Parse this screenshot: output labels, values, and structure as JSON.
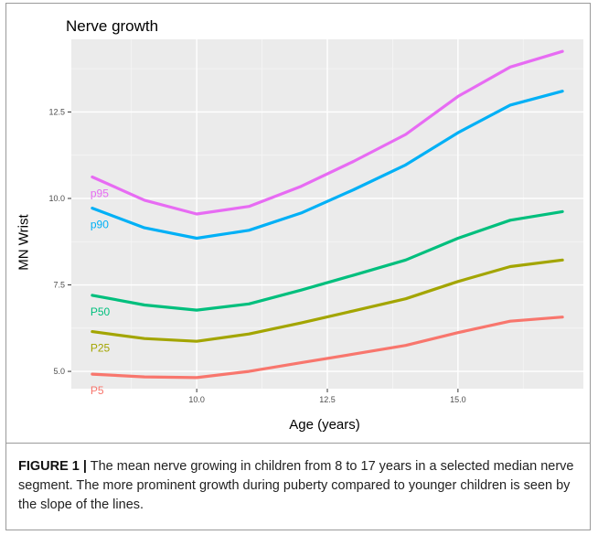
{
  "chart_title": "Nerve growth",
  "caption": {
    "label": "FIGURE 1 |",
    "text": " The mean nerve growing in children from 8 to 17 years in a selected median nerve segment. The more prominent growth during puberty compared to younger children is seen by the slope of the lines."
  },
  "chart_data": {
    "type": "line",
    "xlabel": "Age (years)",
    "ylabel": "MN Wrist",
    "xlim": [
      7.6,
      17.4
    ],
    "ylim": [
      4.5,
      14.6
    ],
    "x_ticks": [
      10.0,
      12.5,
      15.0
    ],
    "x_tick_labels": [
      "10.0",
      "12.5",
      "15.0"
    ],
    "y_ticks": [
      5.0,
      7.5,
      10.0,
      12.5
    ],
    "y_tick_labels": [
      "5.0",
      "7.5",
      "10.0",
      "12.5"
    ],
    "grid": true,
    "background": "#ebebeb",
    "x": [
      8,
      9,
      10,
      11,
      12,
      13,
      14,
      15,
      16,
      17
    ],
    "series": [
      {
        "name": "P5",
        "color": "#f8766d",
        "values": [
          4.92,
          4.84,
          4.82,
          5.0,
          5.25,
          5.5,
          5.75,
          6.12,
          6.45,
          6.57
        ]
      },
      {
        "name": "P25",
        "color": "#a3a500",
        "values": [
          6.15,
          5.95,
          5.87,
          6.08,
          6.4,
          6.75,
          7.1,
          7.6,
          8.03,
          8.22
        ]
      },
      {
        "name": "P50",
        "color": "#00bf7d",
        "values": [
          7.2,
          6.92,
          6.77,
          6.95,
          7.35,
          7.78,
          8.22,
          8.85,
          9.37,
          9.62
        ]
      },
      {
        "name": "p90",
        "color": "#00b0f6",
        "values": [
          9.72,
          9.15,
          8.85,
          9.08,
          9.58,
          10.25,
          10.97,
          11.9,
          12.7,
          13.1
        ]
      },
      {
        "name": "p95",
        "color": "#e76bf3",
        "values": [
          10.62,
          9.95,
          9.55,
          9.77,
          10.35,
          11.07,
          11.85,
          12.95,
          13.8,
          14.25
        ]
      }
    ]
  }
}
